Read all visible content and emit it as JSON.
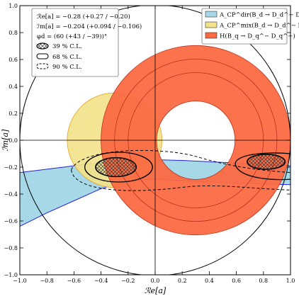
{
  "chart_data": {
    "type": "contour",
    "xlabel": "ℛe[a]",
    "ylabel": "ℐm[a]",
    "xlim": [
      -1.0,
      1.0
    ],
    "ylim": [
      -1.0,
      1.0
    ],
    "x_ticks": [
      "−1.0",
      "−0.8",
      "−0.6",
      "−0.4",
      "−0.2",
      "0.0",
      "0.2",
      "0.4",
      "0.6",
      "0.8",
      "1.0"
    ],
    "y_ticks": [
      "−1.0",
      "−0.8",
      "−0.6",
      "−0.4",
      "−0.2",
      "0.0",
      "0.2",
      "0.4",
      "0.6",
      "0.8",
      "1.0"
    ],
    "result_box": {
      "lines": [
        "ℛe[a] = −0.28 (+0.27 / −0.20)",
        "ℐm[a] = −0.204 (+0.094 / −0.106)",
        "φd = (60 (+43 / −39))°"
      ],
      "cl_entries": [
        "39 % C.L.",
        "68 % C.L.",
        "90 % C.L."
      ]
    },
    "legend_position": "top-right",
    "legend": [
      {
        "label": "A_CP^dir(B_d → D_d^− D_d^+)",
        "color": "#a6d8e8"
      },
      {
        "label": "A_CP^mix(B_d → D_d^− D_d^+)",
        "color": "#f2e38a"
      },
      {
        "label": "H(B_q → D_q^− D_q^+)",
        "color": "#fb6a42"
      }
    ],
    "regions": {
      "H_annulus": {
        "center": [
          0.3,
          0.0
        ],
        "inner_radius": 0.29,
        "outer_radius": 0.7
      },
      "Acp_mix_disk": {
        "center": [
          -0.3,
          0.0
        ],
        "radius": 0.35
      },
      "unit_circle": {
        "center": [
          0.0,
          0.0
        ],
        "radius": 1.0
      },
      "cl39_regions": [
        {
          "center": [
            -0.29,
            -0.2
          ],
          "rx": 0.15,
          "ry": 0.07
        },
        {
          "center": [
            0.82,
            -0.16
          ],
          "rx": 0.14,
          "ry": 0.055
        }
      ]
    }
  }
}
